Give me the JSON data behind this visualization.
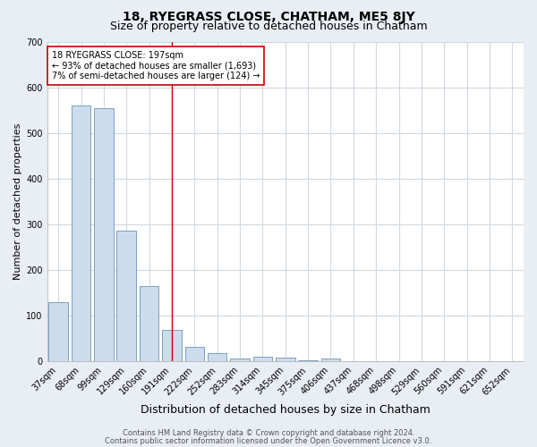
{
  "title": "18, RYEGRASS CLOSE, CHATHAM, ME5 8JY",
  "subtitle": "Size of property relative to detached houses in Chatham",
  "xlabel": "Distribution of detached houses by size in Chatham",
  "ylabel": "Number of detached properties",
  "footer_line1": "Contains HM Land Registry data © Crown copyright and database right 2024.",
  "footer_line2": "Contains public sector information licensed under the Open Government Licence v3.0.",
  "categories": [
    "37sqm",
    "68sqm",
    "99sqm",
    "129sqm",
    "160sqm",
    "191sqm",
    "222sqm",
    "252sqm",
    "283sqm",
    "314sqm",
    "345sqm",
    "375sqm",
    "406sqm",
    "437sqm",
    "468sqm",
    "498sqm",
    "529sqm",
    "560sqm",
    "591sqm",
    "621sqm",
    "652sqm"
  ],
  "values": [
    128,
    560,
    555,
    285,
    165,
    68,
    30,
    18,
    5,
    10,
    8,
    2,
    5,
    0,
    0,
    0,
    0,
    0,
    0,
    0,
    0
  ],
  "bar_color": "#cddcec",
  "bar_edge_color": "#7aa0c0",
  "property_line_index": 5,
  "property_line_color": "#cc0000",
  "annotation_text_line1": "18 RYEGRASS CLOSE: 197sqm",
  "annotation_text_line2": "← 93% of detached houses are smaller (1,693)",
  "annotation_text_line3": "7% of semi-detached houses are larger (124) →",
  "annotation_box_color": "#ffffff",
  "annotation_box_edge_color": "#cc0000",
  "ylim": [
    0,
    700
  ],
  "yticks": [
    0,
    100,
    200,
    300,
    400,
    500,
    600,
    700
  ],
  "fig_bg_color": "#e8eef4",
  "plot_bg_color": "#ffffff",
  "grid_color": "#d0d8e0",
  "title_fontsize": 10,
  "subtitle_fontsize": 9,
  "xlabel_fontsize": 9,
  "ylabel_fontsize": 8,
  "tick_fontsize": 7,
  "annotation_fontsize": 7,
  "footer_fontsize": 6
}
